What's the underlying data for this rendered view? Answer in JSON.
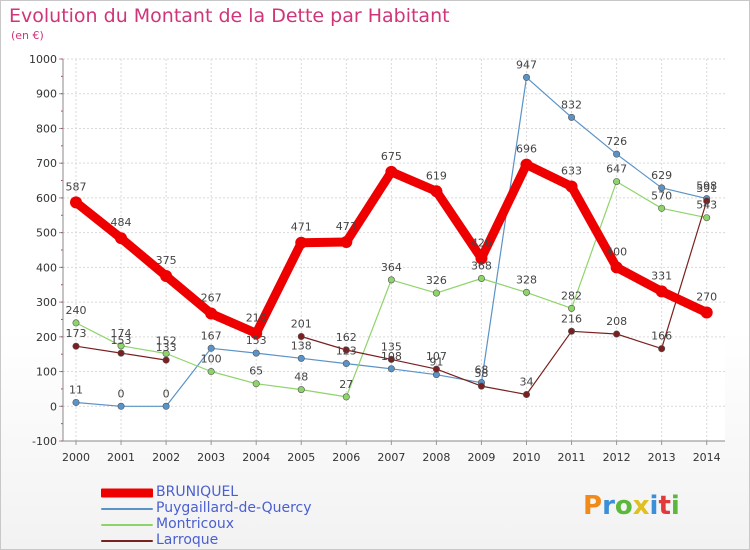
{
  "title": "Evolution du Montant de la Dette par Habitant",
  "unit_label": "(en €)",
  "logo_text": "Proxiti",
  "colors": {
    "title": "#d0357a",
    "bruniquel": "#ee0000",
    "puygaillard": "#5a93c7",
    "montricoux": "#8fd46a",
    "larroque": "#7a2020"
  },
  "chart_data": {
    "type": "line",
    "x": [
      "2000",
      "2001",
      "2002",
      "2003",
      "2004",
      "2005",
      "2006",
      "2007",
      "2008",
      "2009",
      "2010",
      "2011",
      "2012",
      "2013",
      "2014"
    ],
    "ylim": [
      -100,
      1000
    ],
    "yticks": [
      -100,
      0,
      100,
      200,
      300,
      400,
      500,
      600,
      700,
      800,
      900,
      1000
    ],
    "grid": true,
    "legend_position": "bottom-left",
    "series": [
      {
        "name": "BRUNIQUEL",
        "color": "#ee0000",
        "values": [
          587,
          484,
          375,
          267,
          210,
          471,
          473,
          675,
          619,
          426,
          696,
          633,
          400,
          331,
          270
        ]
      },
      {
        "name": "Puygaillard-de-Quercy",
        "color": "#5a93c7",
        "values": [
          11,
          0,
          0,
          167,
          153,
          138,
          123,
          108,
          91,
          68,
          947,
          832,
          726,
          629,
          598
        ]
      },
      {
        "name": "Montricoux",
        "color": "#8fd46a",
        "values": [
          240,
          174,
          152,
          100,
          65,
          48,
          27,
          364,
          326,
          368,
          328,
          282,
          647,
          570,
          543
        ]
      },
      {
        "name": "Larroque",
        "color": "#7a2020",
        "values": [
          173,
          153,
          133,
          null,
          null,
          201,
          162,
          135,
          107,
          58,
          34,
          216,
          208,
          166,
          591
        ]
      }
    ],
    "data_labels": [
      {
        "series": 0,
        "labels": [
          "587",
          "484",
          "375",
          "267",
          "210",
          "471",
          "473",
          "675",
          "619",
          "426",
          "696",
          "633",
          "400",
          "331",
          "270"
        ]
      },
      {
        "series": 1,
        "labels": [
          "11",
          "0",
          "0",
          "167",
          "153",
          "138",
          "123",
          "108",
          "91",
          "68",
          "947",
          "832",
          "726",
          "629",
          "598"
        ]
      },
      {
        "series": 2,
        "labels": [
          "240",
          "174",
          "152",
          "100",
          "65",
          "48",
          "27",
          "364",
          "326",
          "368",
          "328",
          "282",
          "647",
          "570",
          "543"
        ]
      },
      {
        "series": 3,
        "labels": [
          "173",
          "153",
          "133",
          "",
          "",
          "201",
          "162",
          "135",
          "107",
          "58",
          "34",
          "216",
          "208",
          "166",
          "591"
        ]
      }
    ]
  }
}
